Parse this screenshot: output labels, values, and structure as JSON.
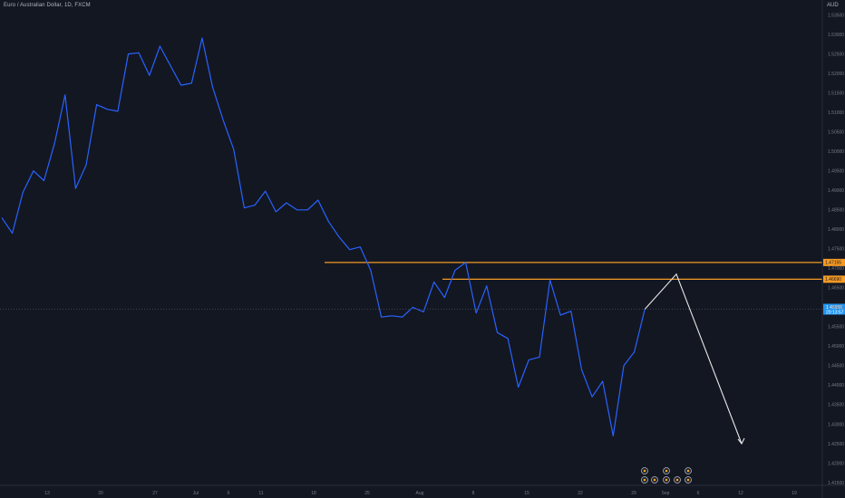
{
  "title": "Euro / Australian Dollar, 1D, FXCM",
  "currency": "AUD",
  "chart_data": {
    "type": "line",
    "series": [
      {
        "color": "#2962ff",
        "values": [
          1.483,
          1.479,
          1.4895,
          1.495,
          1.4925,
          1.502,
          1.5145,
          1.4905,
          1.4965,
          1.512,
          1.5108,
          1.5103,
          1.525,
          1.5253,
          1.5195,
          1.527,
          1.522,
          1.517,
          1.5175,
          1.5291,
          1.5165,
          1.508,
          1.5005,
          1.4855,
          1.4862,
          1.4898,
          1.4845,
          1.4868,
          1.485,
          1.485,
          1.4875,
          1.482,
          1.478,
          1.4748,
          1.4755,
          1.4695,
          1.4575,
          1.4578,
          1.4575,
          1.46,
          1.4588,
          1.4665,
          1.4625,
          1.4695,
          1.4715,
          1.4585,
          1.4655,
          1.4535,
          1.452,
          1.4395,
          1.4465,
          1.4472,
          1.467,
          1.458,
          1.459,
          1.444,
          1.437,
          1.441,
          1.427,
          1.445,
          1.4485,
          1.4595
        ]
      }
    ],
    "y_ticks": [
      "1.53500",
      "1.53000",
      "1.52500",
      "1.52000",
      "1.51500",
      "1.51000",
      "1.50500",
      "1.50000",
      "1.49500",
      "1.49000",
      "1.48500",
      "1.48000",
      "1.47500",
      "1.47000",
      "1.46500",
      "1.46000",
      "1.45500",
      "1.45000",
      "1.44500",
      "1.44000",
      "1.43500",
      "1.43000",
      "1.42500",
      "1.42000",
      "1.41500"
    ],
    "x_ticks": [
      "13",
      "20",
      "27",
      "Jul",
      "6",
      "11",
      "18",
      "25",
      "Aug",
      "8",
      "15",
      "22",
      "29",
      "Sep",
      "6",
      "12",
      "19"
    ],
    "ylim": [
      1.415,
      1.537
    ],
    "horizontal_levels": [
      {
        "value": 1.4715,
        "label": "1.47155",
        "color": "#f59a23"
      },
      {
        "value": 1.4672,
        "label": "1.46690",
        "color": "#f59a23"
      }
    ],
    "current_price": {
      "value": 1.4595,
      "label": "1.45956",
      "sub_label": "20:13:57",
      "color": "#2196f3"
    },
    "projection": {
      "color": "#e8e8e8",
      "points": [
        [
          61,
          1.4595
        ],
        [
          62,
          1.4685
        ],
        [
          63,
          1.425
        ]
      ]
    },
    "grid": false,
    "legend": "none",
    "event_icons": 5
  }
}
